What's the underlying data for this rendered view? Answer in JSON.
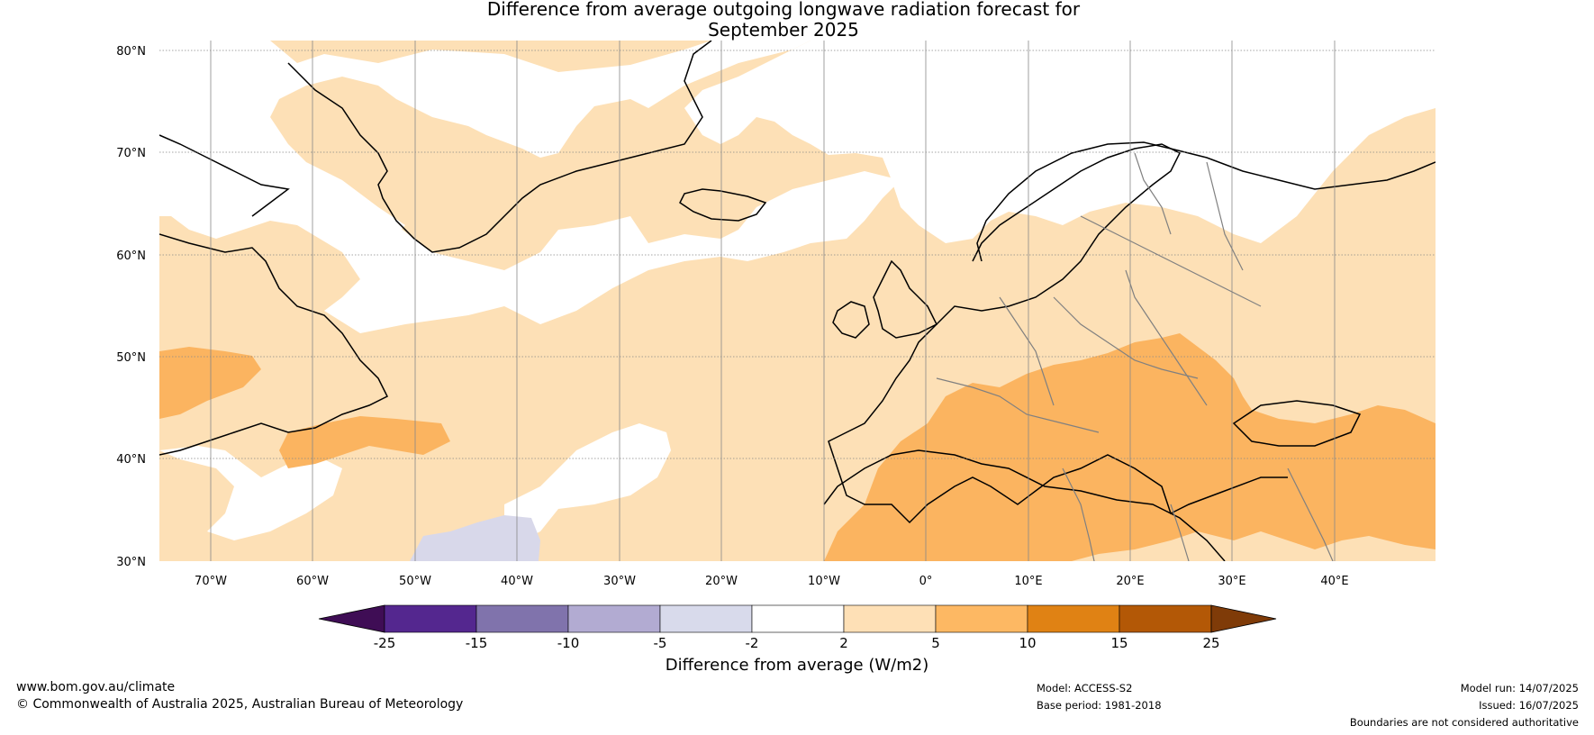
{
  "title": {
    "line1": "Difference from average outgoing longwave radiation forecast for",
    "line2": "September 2025"
  },
  "map": {
    "lat_labels": [
      "80°N",
      "70°N",
      "60°N",
      "50°N",
      "40°N",
      "30°N"
    ],
    "lon_labels": [
      "70°W",
      "60°W",
      "50°W",
      "40°W",
      "30°W",
      "20°W",
      "10°W",
      "0°",
      "10°E",
      "20°E",
      "30°E",
      "40°E"
    ],
    "colors": {
      "weak_positive": "#fde0b6",
      "moderate_positive": "#fbb460",
      "weak_negative": "#d8d8ea",
      "coast": "#000000",
      "border": "#808080",
      "grid": "#888888"
    }
  },
  "colorbar": {
    "ticks": [
      "-25",
      "-15",
      "-10",
      "-5",
      "-2",
      "2",
      "5",
      "10",
      "15",
      "25"
    ],
    "colors": [
      "#3f0d55",
      "#54278f",
      "#8073ac",
      "#b2abd2",
      "#d8daeb",
      "#ffffff",
      "#fee0b6",
      "#fdb863",
      "#e08214",
      "#b35806",
      "#7f3b08"
    ],
    "label": "Difference from average (W/m2)"
  },
  "footer": {
    "website": "www.bom.gov.au/climate",
    "copyright": "© Commonwealth of Australia 2025, Australian Bureau of Meteorology",
    "model": "Model: ACCESS-S2",
    "base_period": "Base period: 1981-2018",
    "model_run": "Model run: 14/07/2025",
    "issued": "Issued: 16/07/2025",
    "disclaimer": "Boundaries are not considered authoritative"
  }
}
